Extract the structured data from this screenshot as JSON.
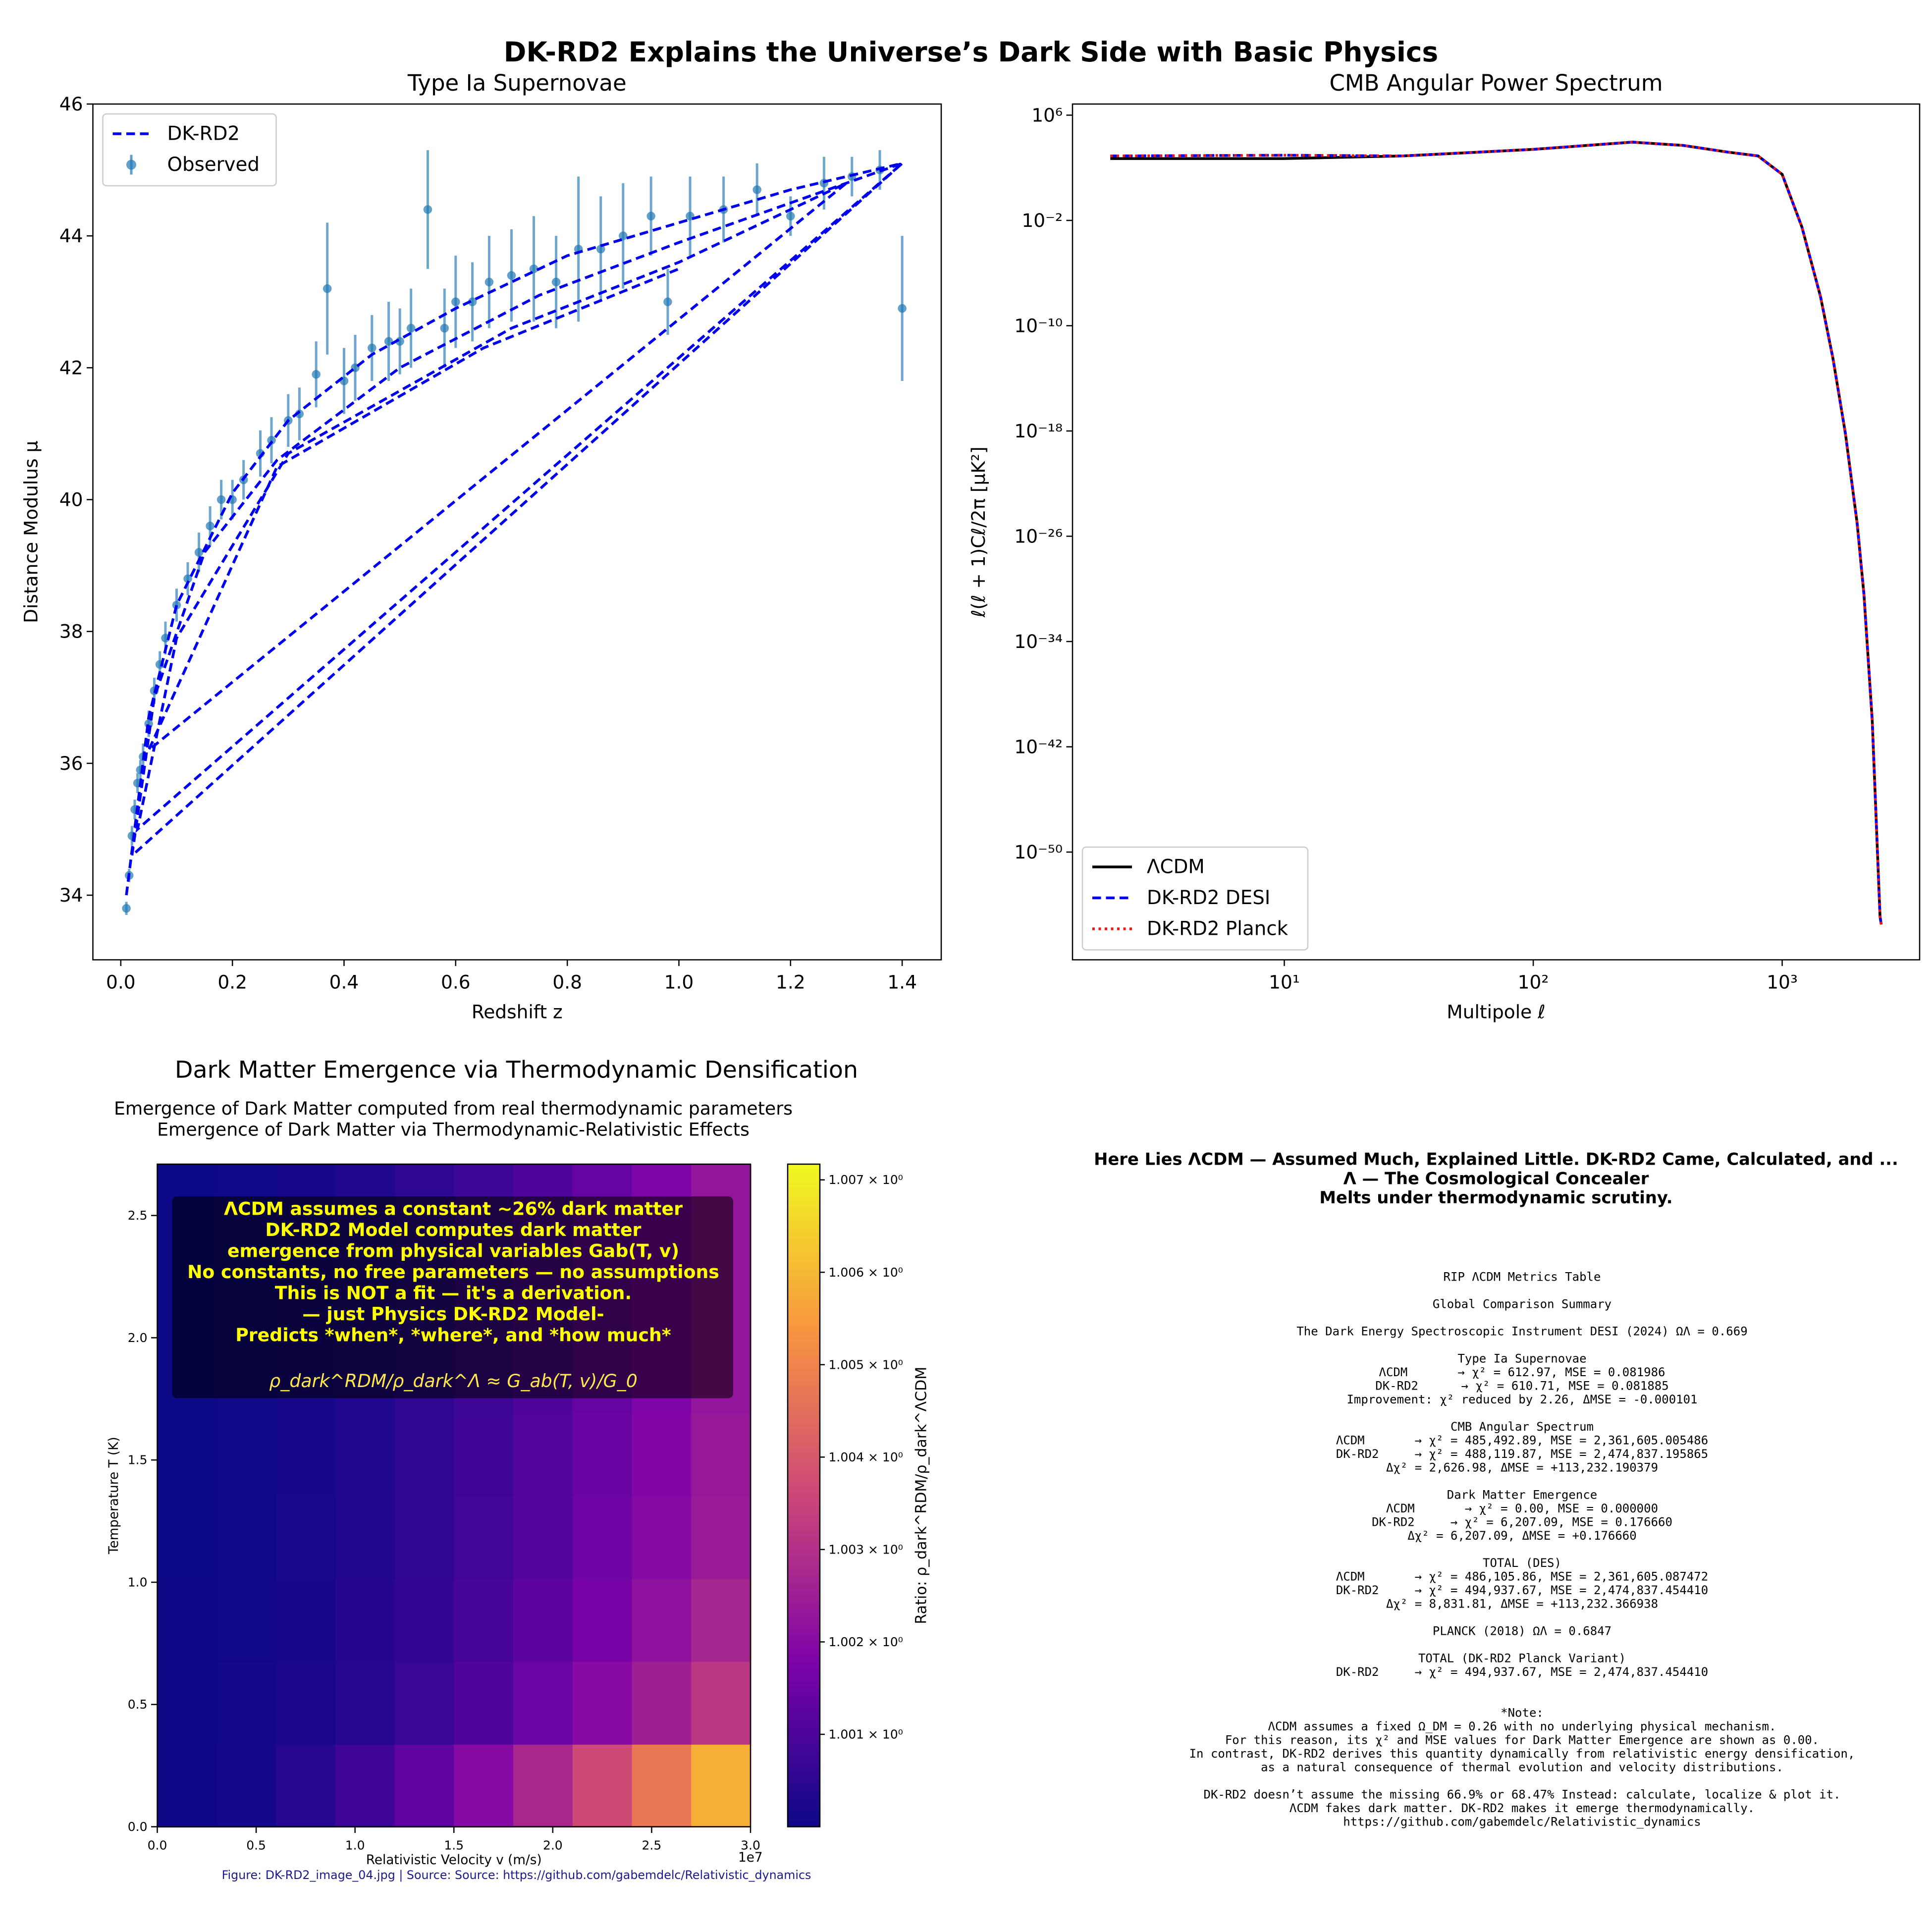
{
  "title": "DK-RD2 Explains the Universe’s Dark Side with Basic Physics",
  "chart_data": [
    {
      "type": "scatter",
      "title": "Type Ia Supernovae",
      "xlabel": "Redshift z",
      "ylabel": "Distance Modulus μ",
      "xlim": [
        -0.05,
        1.47
      ],
      "ylim": [
        33.02,
        46
      ],
      "xticks": [
        {
          "value": 0,
          "label": "0.0"
        },
        {
          "value": 0.2,
          "label": "0.2"
        },
        {
          "value": 0.4,
          "label": "0.4"
        },
        {
          "value": 0.6,
          "label": "0.6"
        },
        {
          "value": 0.8,
          "label": "0.8"
        },
        {
          "value": 1.0,
          "label": "1.0"
        },
        {
          "value": 1.2,
          "label": "1.2"
        },
        {
          "value": 1.4,
          "label": "1.4"
        }
      ],
      "yticks": [
        34,
        36,
        38,
        40,
        42,
        44,
        46
      ],
      "legend": "upper left",
      "series": [
        {
          "name": "Observed",
          "mark": "errorbar",
          "color": "#1f77b4",
          "x": [
            0.01,
            0.015,
            0.02,
            0.025,
            0.03,
            0.035,
            0.04,
            0.05,
            0.06,
            0.07,
            0.08,
            0.1,
            0.12,
            0.14,
            0.16,
            0.18,
            0.2,
            0.22,
            0.25,
            0.27,
            0.3,
            0.32,
            0.35,
            0.37,
            0.4,
            0.42,
            0.45,
            0.48,
            0.5,
            0.52,
            0.55,
            0.58,
            0.6,
            0.63,
            0.66,
            0.7,
            0.74,
            0.78,
            0.82,
            0.86,
            0.9,
            0.95,
            0.98,
            1.02,
            1.08,
            1.14,
            1.2,
            1.26,
            1.31,
            1.36,
            1.4
          ],
          "values": [
            33.8,
            34.3,
            34.9,
            35.3,
            35.7,
            35.9,
            36.1,
            36.6,
            37.1,
            37.5,
            37.9,
            38.4,
            38.8,
            39.2,
            39.6,
            40.0,
            40.0,
            40.3,
            40.7,
            40.9,
            41.2,
            41.3,
            41.9,
            43.2,
            41.8,
            42.0,
            42.3,
            42.4,
            42.4,
            42.6,
            44.4,
            42.6,
            43.0,
            43.0,
            43.3,
            43.4,
            43.5,
            43.3,
            43.8,
            43.8,
            44.0,
            44.3,
            43.0,
            44.3,
            44.4,
            44.7,
            44.3,
            44.8,
            44.9,
            45.0,
            42.9
          ],
          "errors": [
            0.1,
            0.1,
            0.15,
            0.15,
            0.15,
            0.15,
            0.2,
            0.2,
            0.2,
            0.2,
            0.25,
            0.25,
            0.25,
            0.3,
            0.3,
            0.3,
            0.3,
            0.3,
            0.35,
            0.35,
            0.4,
            0.4,
            0.5,
            1.0,
            0.5,
            0.5,
            0.5,
            0.6,
            0.5,
            0.6,
            0.9,
            0.6,
            0.7,
            0.6,
            0.7,
            0.7,
            0.8,
            0.7,
            1.1,
            0.8,
            0.8,
            0.6,
            0.5,
            0.6,
            0.5,
            0.4,
            0.3,
            0.4,
            0.3,
            0.3,
            1.1
          ]
        },
        {
          "name": "DK-RD2",
          "mark": "line",
          "style": "dashed",
          "color": "#0000ee",
          "x": [
            0.01,
            0.05,
            0.1,
            0.2,
            0.3,
            0.45,
            0.6,
            0.8,
            1.0,
            1.2,
            1.4,
            0.02,
            0.06,
            0.15,
            0.28,
            0.5,
            0.75,
            1.0,
            1.4,
            0.03,
            0.1,
            0.3,
            0.7,
            1.0,
            1.3,
            0.05,
            0.28,
            0.65,
            1.0
          ],
          "values": [
            34.0,
            36.7,
            38.4,
            40.1,
            41.2,
            42.2,
            42.9,
            43.7,
            44.2,
            44.7,
            45.1,
            34.6,
            37.0,
            39.2,
            40.6,
            42.0,
            43.1,
            43.9,
            45.1,
            35.0,
            37.9,
            40.7,
            42.6,
            43.6,
            44.8,
            36.2,
            40.5,
            42.3,
            43.5
          ]
        }
      ]
    },
    {
      "type": "line",
      "title": "CMB Angular Power Spectrum",
      "xlabel": "Multipole ℓ",
      "ylabel": "ℓ(ℓ + 1)Cℓ/2π [μK²]",
      "xscale": "log",
      "yscale": "log",
      "xlim": [
        1.41,
        3565
      ],
      "ylim": [
        6.5e-59,
        7000000.0
      ],
      "xticks": [
        {
          "value": 10,
          "label": "10¹"
        },
        {
          "value": 100,
          "label": "10²"
        },
        {
          "value": 1000,
          "label": "10³"
        }
      ],
      "yticks": [
        {
          "value": 1000000.0,
          "label": "10⁶"
        },
        {
          "value": 0.01,
          "label": "10⁻²"
        },
        {
          "value": 1e-10,
          "label": "10⁻¹⁰"
        },
        {
          "value": 1e-18,
          "label": "10⁻¹⁸"
        },
        {
          "value": 1e-26,
          "label": "10⁻²⁶"
        },
        {
          "value": 1e-34,
          "label": "10⁻³⁴"
        },
        {
          "value": 1e-42,
          "label": "10⁻⁴²"
        },
        {
          "value": 1e-50,
          "label": "10⁻⁵⁰"
        }
      ],
      "legend": "lower left",
      "x": [
        2,
        10,
        30,
        100,
        250,
        400,
        600,
        800,
        1000,
        1200,
        1426,
        1600,
        1795,
        2000,
        2130,
        2300,
        2472,
        2500
      ],
      "series": [
        {
          "name": "ΛCDM",
          "style": "solid",
          "color": "#000000",
          "values": [
            501,
            501,
            794,
            2512,
            8913,
            5012,
            1585,
            794,
            31.6,
            0.00316,
            1.58e-08,
            3.16e-13,
            6.31e-19,
            1e-25,
            3.98e-31,
            1e-40,
            1.26e-55,
            3.16e-56
          ]
        },
        {
          "name": "DK-RD2 DESI",
          "style": "dashed",
          "color": "#0000ee",
          "values": [
            794,
            900,
            794,
            2512,
            8913,
            5012,
            1585,
            794,
            31.6,
            0.00316,
            1.58e-08,
            3.16e-13,
            6.31e-19,
            1e-25,
            3.98e-31,
            1e-40,
            1.26e-55,
            3.16e-56
          ]
        },
        {
          "name": "DK-RD2 Planck",
          "style": "dotted",
          "color": "#e41a1c",
          "values": [
            794,
            900,
            794,
            2512,
            8913,
            5012,
            1585,
            794,
            31.6,
            0.00316,
            1.58e-08,
            3.16e-13,
            6.31e-19,
            1e-25,
            3.98e-31,
            1e-40,
            1.26e-55,
            3.16e-56
          ]
        }
      ]
    },
    {
      "type": "heatmap",
      "title": "Dark Matter Emergence via Thermodynamic Densification",
      "subtitles": [
        "Emergence of Dark Matter computed from real thermodynamic parameters",
        "Emergence of Dark Matter via Thermodynamic-Relativistic Effects"
      ],
      "xlabel": "Relativistic Velocity v (m/s)",
      "ylabel": "Temperature T (K)",
      "x_offset_label": "1e7",
      "xlim": [
        0,
        30000000
      ],
      "ylim": [
        0,
        2.71
      ],
      "xticks": [
        {
          "value": 0,
          "label": "0.0"
        },
        {
          "value": 5000000,
          "label": "0.5"
        },
        {
          "value": 10000000,
          "label": "1.0"
        },
        {
          "value": 15000000,
          "label": "1.5"
        },
        {
          "value": 20000000,
          "label": "2.0"
        },
        {
          "value": 25000000,
          "label": "2.5"
        },
        {
          "value": 30000000,
          "label": "3.0"
        }
      ],
      "yticks": [
        {
          "value": 0,
          "label": "0.0"
        },
        {
          "value": 0.5,
          "label": "0.5"
        },
        {
          "value": 1.0,
          "label": "1.0"
        },
        {
          "value": 1.5,
          "label": "1.5"
        },
        {
          "value": 2.0,
          "label": "2.0"
        },
        {
          "value": 2.5,
          "label": "2.5"
        }
      ],
      "colormap": "plasma",
      "clim": [
        1.0,
        1.00717
      ],
      "colorbar_label": "Ratio: ρ_dark^RDM/ρ_dark^ΛCDM",
      "colorbar_ticks": [
        {
          "value": 1.001,
          "label": "1.001 × 10⁰"
        },
        {
          "value": 1.002,
          "label": "1.002 × 10⁰"
        },
        {
          "value": 1.003,
          "label": "1.003 × 10⁰"
        },
        {
          "value": 1.004,
          "label": "1.004 × 10⁰"
        },
        {
          "value": 1.005,
          "label": "1.005 × 10⁰"
        },
        {
          "value": 1.006,
          "label": "1.006 × 10⁰"
        },
        {
          "value": 1.007,
          "label": "1.007 × 10⁰"
        }
      ],
      "z": [
        [
          1.000016,
          1.000146,
          1.000406,
          1.000796,
          1.001316,
          1.001966,
          1.002746,
          1.003656,
          1.004696,
          1.005866
        ],
        [
          1.000009,
          1.000079,
          1.000219,
          1.000429,
          1.000709,
          1.001059,
          1.001479,
          1.001969,
          1.002529,
          1.003159
        ],
        [
          1.000008,
          1.000068,
          1.000188,
          1.000368,
          1.000608,
          1.000908,
          1.001268,
          1.001688,
          1.002168,
          1.002708
        ],
        [
          1.000007,
          1.000061,
          1.000169,
          1.000331,
          1.000547,
          1.000817,
          1.001141,
          1.001519,
          1.001951,
          1.002437
        ],
        [
          1.000007,
          1.000059,
          1.000163,
          1.000319,
          1.000527,
          1.000787,
          1.001099,
          1.001463,
          1.001879,
          1.002347
        ],
        [
          1.000006,
          1.000056,
          1.000156,
          1.000306,
          1.000506,
          1.000756,
          1.001056,
          1.001406,
          1.001806,
          1.002256
        ],
        [
          1.000006,
          1.000056,
          1.000156,
          1.000306,
          1.000506,
          1.000756,
          1.001056,
          1.001406,
          1.001806,
          1.002256
        ],
        [
          1.000006,
          1.000056,
          1.000156,
          1.000306,
          1.000506,
          1.000756,
          1.001056,
          1.001406,
          1.001806,
          1.002256
        ]
      ],
      "annotation": {
        "lines": [
          "ΛCDM assumes a constant ~26% dark matter",
          "DK-RD2 Model computes dark matter",
          "emergence from physical variables Gab(T, v)",
          "No constants, no free parameters — no assumptions",
          "This is NOT a fit — it's a derivation.",
          "— just Physics DK-RD2 Model-",
          "Predicts *when*, *where*, and *how much*"
        ],
        "formula": "ρ_dark^RDM/ρ_dark^Λ ≈ G_ab(T, v)/G_0"
      },
      "caption": "Figure: DK-RD2_image_04.jpg  | Source:  Source: https://github.com/gabemdelc/Relativistic_dynamics"
    }
  ],
  "document": {
    "headers": [
      "Here Lies ΛCDM — Assumed Much, Explained Little. DK-RD2 Came, Calculated, and ...",
      "Λ — The Cosmological Concealer",
      "Melts under thermodynamic scrutiny."
    ],
    "blocks": [
      [
        "RIP ΛCDM Metrics Table"
      ],
      [
        "Global Comparison Summary"
      ],
      [
        "The Dark Energy Spectroscopic Instrument DESI (2024) ΩΛ = 0.669"
      ],
      [
        "Type Ia Supernovae",
        "ΛCDM       → χ² = 612.97, MSE = 0.081986",
        "DK-RD2      → χ² = 610.71, MSE = 0.081885",
        "Improvement: χ² reduced by 2.26, ΔMSE = -0.000101"
      ],
      [
        "CMB Angular Spectrum",
        "ΛCDM       → χ² = 485,492.89, MSE = 2,361,605.005486",
        "DK-RD2     → χ² = 488,119.87, MSE = 2,474,837.195865",
        "Δχ² = 2,626.98, ΔMSE = +113,232.190379"
      ],
      [
        "Dark Matter Emergence",
        "ΛCDM       → χ² = 0.00, MSE = 0.000000",
        "DK-RD2     → χ² = 6,207.09, MSE = 0.176660",
        "Δχ² = 6,207.09, ΔMSE = +0.176660"
      ],
      [
        "TOTAL (DES)",
        "ΛCDM       → χ² = 486,105.86, MSE = 2,361,605.087472",
        "DK-RD2     → χ² = 494,937.67, MSE = 2,474,837.454410",
        "Δχ² = 8,831.81, ΔMSE = +113,232.366938"
      ],
      [
        "PLANCK (2018) ΩΛ = 0.6847"
      ],
      [
        "TOTAL (DK-RD2 Planck Variant)",
        "DK-RD2     → χ² = 494,937.67, MSE = 2,474,837.454410"
      ],
      [
        "*Note:",
        "ΛCDM assumes a fixed Ω_DM = 0.26 with no underlying physical mechanism.",
        "For this reason, its χ² and MSE values for Dark Matter Emergence are shown as 0.00.",
        "In contrast, DK-RD2 derives this quantity dynamically from relativistic energy densification,",
        "as a natural consequence of thermal evolution and velocity distributions."
      ],
      [
        "DK-RD2 doesn’t assume the missing 66.9% or 68.47% Instead: calculate, localize & plot it.",
        "ΛCDM fakes dark matter. DK-RD2 makes it emerge thermodynamically.",
        "https://github.com/gabemdelc/Relativistic_dynamics"
      ]
    ]
  }
}
